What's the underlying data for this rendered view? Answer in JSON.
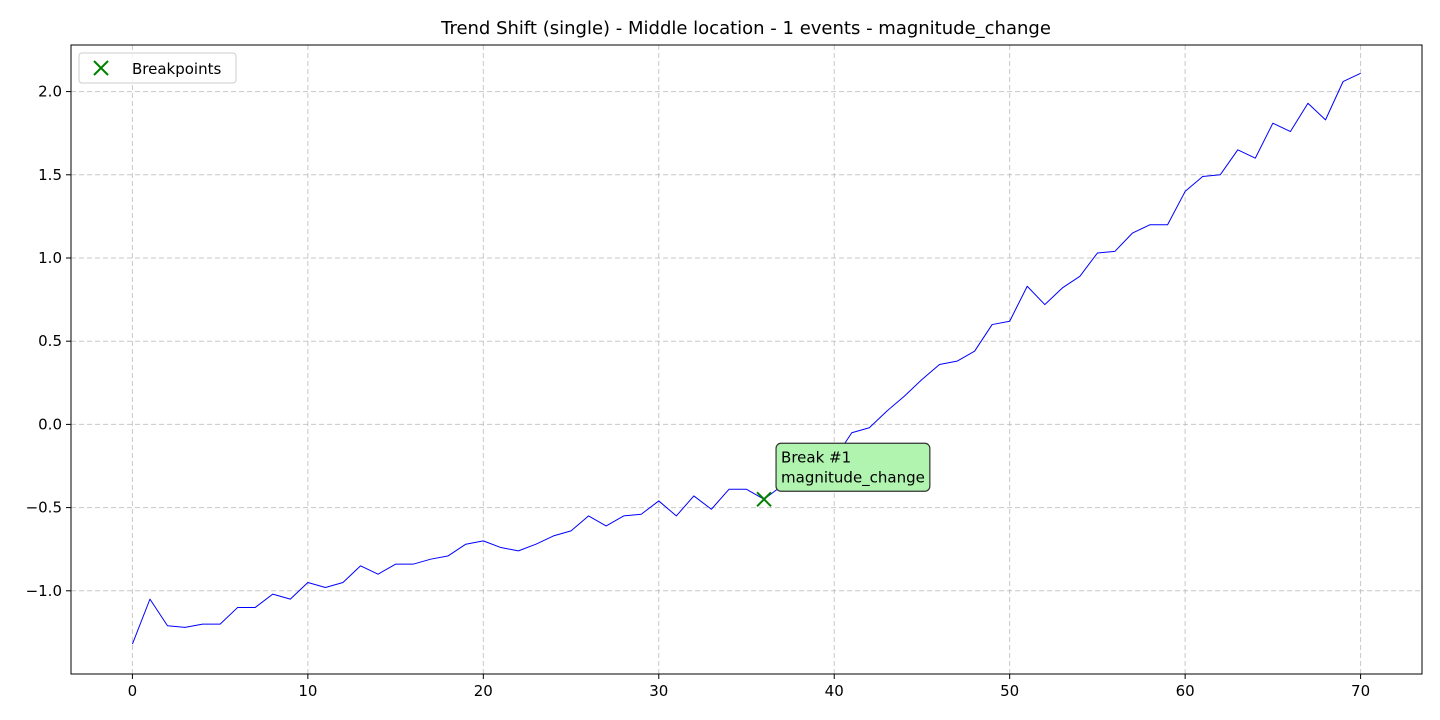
{
  "chart_data": {
    "type": "line",
    "title": "Trend Shift (single) - Middle location - 1 events - magnitude_change",
    "xlabel": "",
    "ylabel": "",
    "xlim": [
      -3.5,
      73.5
    ],
    "ylim": [
      -1.5,
      2.28
    ],
    "grid": true,
    "legend_position": "top-left",
    "x_ticks": [
      0,
      10,
      20,
      30,
      40,
      50,
      60,
      70
    ],
    "x_tick_labels": [
      "0",
      "10",
      "20",
      "30",
      "40",
      "50",
      "60",
      "70"
    ],
    "y_ticks": [
      -1.0,
      -0.5,
      0.0,
      0.5,
      1.0,
      1.5,
      2.0
    ],
    "y_tick_labels": [
      "−1.0",
      "−0.5",
      "0.0",
      "0.5",
      "1.0",
      "1.5",
      "2.0"
    ],
    "series": [
      {
        "color": "#0000ff",
        "x": [
          0,
          1,
          2,
          3,
          4,
          5,
          6,
          7,
          8,
          9,
          10,
          11,
          12,
          13,
          14,
          15,
          16,
          17,
          18,
          19,
          20,
          21,
          22,
          23,
          24,
          25,
          26,
          27,
          28,
          29,
          30,
          31,
          32,
          33,
          34,
          35,
          36,
          37,
          38,
          39,
          40,
          41,
          42,
          43,
          44,
          45,
          46,
          47,
          48,
          49,
          50,
          51,
          52,
          53,
          54,
          55,
          56,
          57,
          58,
          59,
          60,
          61,
          62,
          63,
          64,
          65,
          66,
          67,
          68,
          69,
          70
        ],
        "values": [
          -1.32,
          -1.05,
          -1.21,
          -1.22,
          -1.2,
          -1.2,
          -1.1,
          -1.1,
          -1.02,
          -1.05,
          -0.95,
          -0.98,
          -0.95,
          -0.85,
          -0.9,
          -0.84,
          -0.84,
          -0.81,
          -0.79,
          -0.72,
          -0.7,
          -0.74,
          -0.76,
          -0.72,
          -0.67,
          -0.64,
          -0.55,
          -0.61,
          -0.55,
          -0.54,
          -0.46,
          -0.55,
          -0.43,
          -0.51,
          -0.39,
          -0.39,
          -0.45,
          -0.37,
          -0.27,
          -0.13,
          -0.21,
          -0.05,
          -0.02,
          0.08,
          0.17,
          0.27,
          0.36,
          0.38,
          0.44,
          0.6,
          0.62,
          0.83,
          0.72,
          0.82,
          0.89,
          1.03,
          1.04,
          1.15,
          1.2,
          1.2,
          1.4,
          1.49,
          1.5,
          1.65,
          1.6,
          1.81,
          1.76,
          1.93,
          1.83,
          2.06,
          2.11
        ]
      }
    ],
    "breakpoints": {
      "name": "Breakpoints",
      "color": "#008000",
      "marker": "x",
      "points": [
        {
          "x": 36,
          "y": -0.45
        }
      ]
    },
    "annotations": [
      {
        "x": 36,
        "y": -0.45,
        "line1": "Break #1",
        "line2": "magnitude_change",
        "box_color": "#b0f4b0"
      }
    ]
  }
}
